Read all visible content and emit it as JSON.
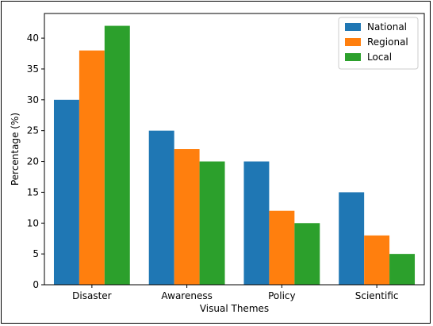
{
  "chart_data": {
    "type": "bar",
    "xlabel": "Visual Themes",
    "ylabel": "Percentage (%)",
    "categories": [
      "Disaster",
      "Awareness",
      "Policy",
      "Scientific"
    ],
    "ylim": [
      0,
      44
    ],
    "yticks": [
      0,
      5,
      10,
      15,
      20,
      25,
      30,
      35,
      40
    ],
    "series": [
      {
        "name": "National",
        "color": "#1f77b4",
        "values": [
          30,
          25,
          20,
          15
        ]
      },
      {
        "name": "Regional",
        "color": "#ff7f0e",
        "values": [
          38,
          22,
          12,
          8
        ]
      },
      {
        "name": "Local",
        "color": "#2ca02c",
        "values": [
          42,
          20,
          10,
          5
        ]
      }
    ],
    "legend_position": "top-right",
    "grid": false
  }
}
